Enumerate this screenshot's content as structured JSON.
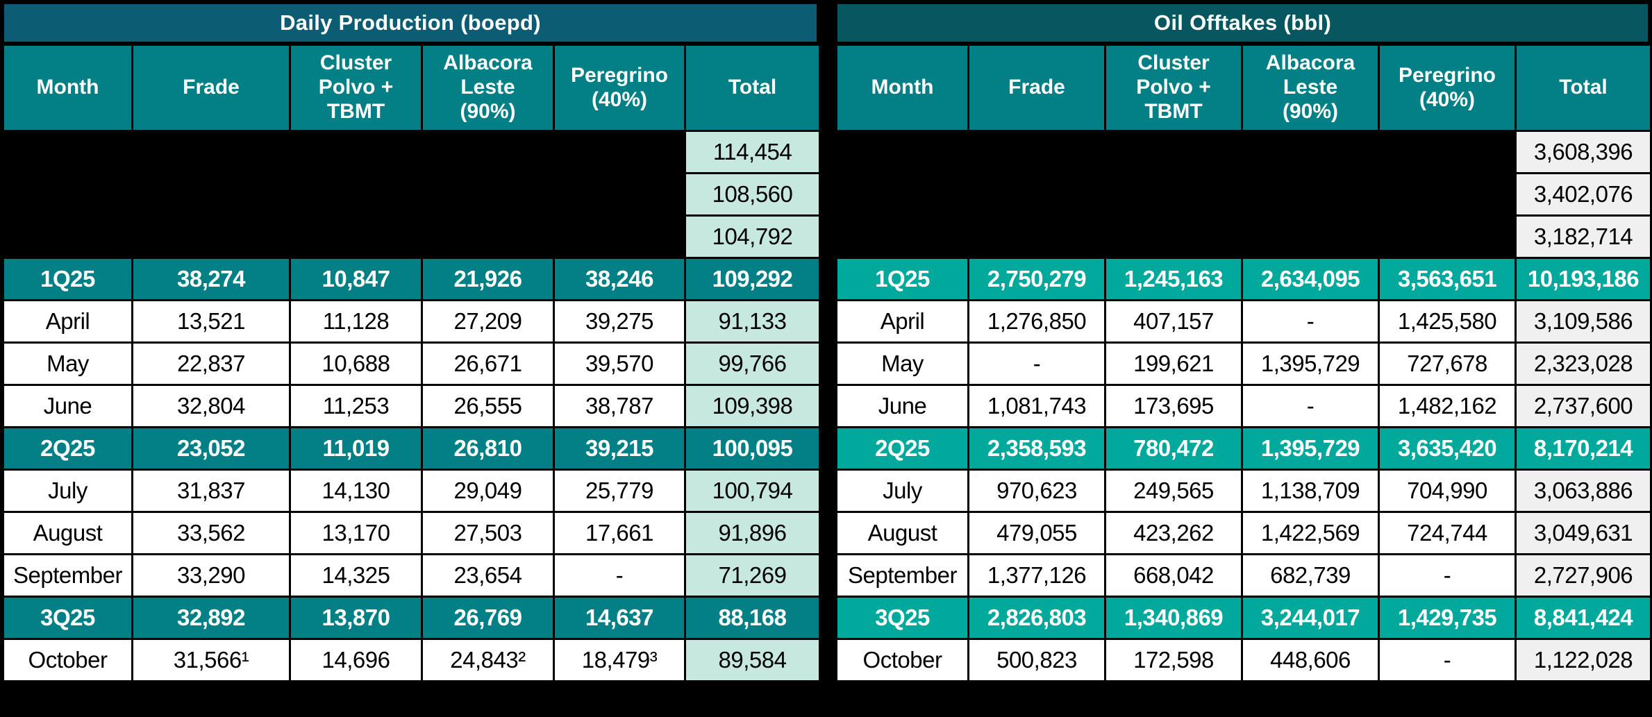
{
  "colors": {
    "left-title-bg": "#0C5D73",
    "right-title-bg": "#06575F",
    "header-bg": "#038086",
    "left-quarter-bg": "#038086",
    "right-quarter-bg": "#00A99B",
    "left-total-bg": "#C6E8DF",
    "right-total-bg": "#F0F0F0",
    "row-bg": "#FFFFFF",
    "grid": "#000000",
    "header-text": "#FFFFFF",
    "cell-text": "#000000"
  },
  "chart_data": [
    {
      "type": "table",
      "title": "Daily Production (boepd)",
      "columns": [
        "Month",
        "Frade",
        "Cluster\nPolvo +\nTBMT",
        "Albacora\nLeste\n(90%)",
        "Peregrino\n(40%)",
        "Total"
      ],
      "rows": [
        {
          "type": "hidden",
          "month": "",
          "values": [
            "",
            "",
            "",
            ""
          ],
          "total": "114,454"
        },
        {
          "type": "hidden",
          "month": "",
          "values": [
            "",
            "",
            "",
            ""
          ],
          "total": "108,560"
        },
        {
          "type": "hidden",
          "month": "",
          "values": [
            "",
            "",
            "",
            ""
          ],
          "total": "104,792"
        },
        {
          "type": "quarter",
          "month": "1Q25",
          "values": [
            "38,274",
            "10,847",
            "21,926",
            "38,246"
          ],
          "total": "109,292"
        },
        {
          "type": "month",
          "month": "April",
          "values": [
            "13,521",
            "11,128",
            "27,209",
            "39,275"
          ],
          "total": "91,133"
        },
        {
          "type": "month",
          "month": "May",
          "values": [
            "22,837",
            "10,688",
            "26,671",
            "39,570"
          ],
          "total": "99,766"
        },
        {
          "type": "month",
          "month": "June",
          "values": [
            "32,804",
            "11,253",
            "26,555",
            "38,787"
          ],
          "total": "109,398"
        },
        {
          "type": "quarter",
          "month": "2Q25",
          "values": [
            "23,052",
            "11,019",
            "26,810",
            "39,215"
          ],
          "total": "100,095"
        },
        {
          "type": "month",
          "month": "July",
          "values": [
            "31,837",
            "14,130",
            "29,049",
            "25,779"
          ],
          "total": "100,794"
        },
        {
          "type": "month",
          "month": "August",
          "values": [
            "33,562",
            "13,170",
            "27,503",
            "17,661"
          ],
          "total": "91,896"
        },
        {
          "type": "month",
          "month": "September",
          "values": [
            "33,290",
            "14,325",
            "23,654",
            "-"
          ],
          "total": "71,269"
        },
        {
          "type": "quarter",
          "month": "3Q25",
          "values": [
            "32,892",
            "13,870",
            "26,769",
            "14,637"
          ],
          "total": "88,168"
        },
        {
          "type": "month",
          "month": "October",
          "values": [
            "31,566¹",
            "14,696",
            "24,843²",
            "18,479³"
          ],
          "total": "89,584"
        }
      ]
    },
    {
      "type": "table",
      "title": "Oil Offtakes (bbl)",
      "columns": [
        "Month",
        "Frade",
        "Cluster\nPolvo +\nTBMT",
        "Albacora\nLeste\n(90%)",
        "Peregrino\n(40%)",
        "Total"
      ],
      "rows": [
        {
          "type": "hidden",
          "month": "",
          "values": [
            "",
            "",
            "",
            ""
          ],
          "total": "3,608,396"
        },
        {
          "type": "hidden",
          "month": "",
          "values": [
            "",
            "",
            "",
            ""
          ],
          "total": "3,402,076"
        },
        {
          "type": "hidden",
          "month": "",
          "values": [
            "",
            "",
            "",
            ""
          ],
          "total": "3,182,714"
        },
        {
          "type": "quarter",
          "month": "1Q25",
          "values": [
            "2,750,279",
            "1,245,163",
            "2,634,095",
            "3,563,651"
          ],
          "total": "10,193,186"
        },
        {
          "type": "month",
          "month": "April",
          "values": [
            "1,276,850",
            "407,157",
            "-",
            "1,425,580"
          ],
          "total": "3,109,586"
        },
        {
          "type": "month",
          "month": "May",
          "values": [
            "-",
            "199,621",
            "1,395,729",
            "727,678"
          ],
          "total": "2,323,028"
        },
        {
          "type": "month",
          "month": "June",
          "values": [
            "1,081,743",
            "173,695",
            "-",
            "1,482,162"
          ],
          "total": "2,737,600"
        },
        {
          "type": "quarter",
          "month": "2Q25",
          "values": [
            "2,358,593",
            "780,472",
            "1,395,729",
            "3,635,420"
          ],
          "total": "8,170,214"
        },
        {
          "type": "month",
          "month": "July",
          "values": [
            "970,623",
            "249,565",
            "1,138,709",
            "704,990"
          ],
          "total": "3,063,886"
        },
        {
          "type": "month",
          "month": "August",
          "values": [
            "479,055",
            "423,262",
            "1,422,569",
            "724,744"
          ],
          "total": "3,049,631"
        },
        {
          "type": "month",
          "month": "September",
          "values": [
            "1,377,126",
            "668,042",
            "682,739",
            "-"
          ],
          "total": "2,727,906"
        },
        {
          "type": "quarter",
          "month": "3Q25",
          "values": [
            "2,826,803",
            "1,340,869",
            "3,244,017",
            "1,429,735"
          ],
          "total": "8,841,424"
        },
        {
          "type": "month",
          "month": "October",
          "values": [
            "500,823",
            "172,598",
            "448,606",
            "-"
          ],
          "total": "1,122,028"
        }
      ]
    }
  ]
}
